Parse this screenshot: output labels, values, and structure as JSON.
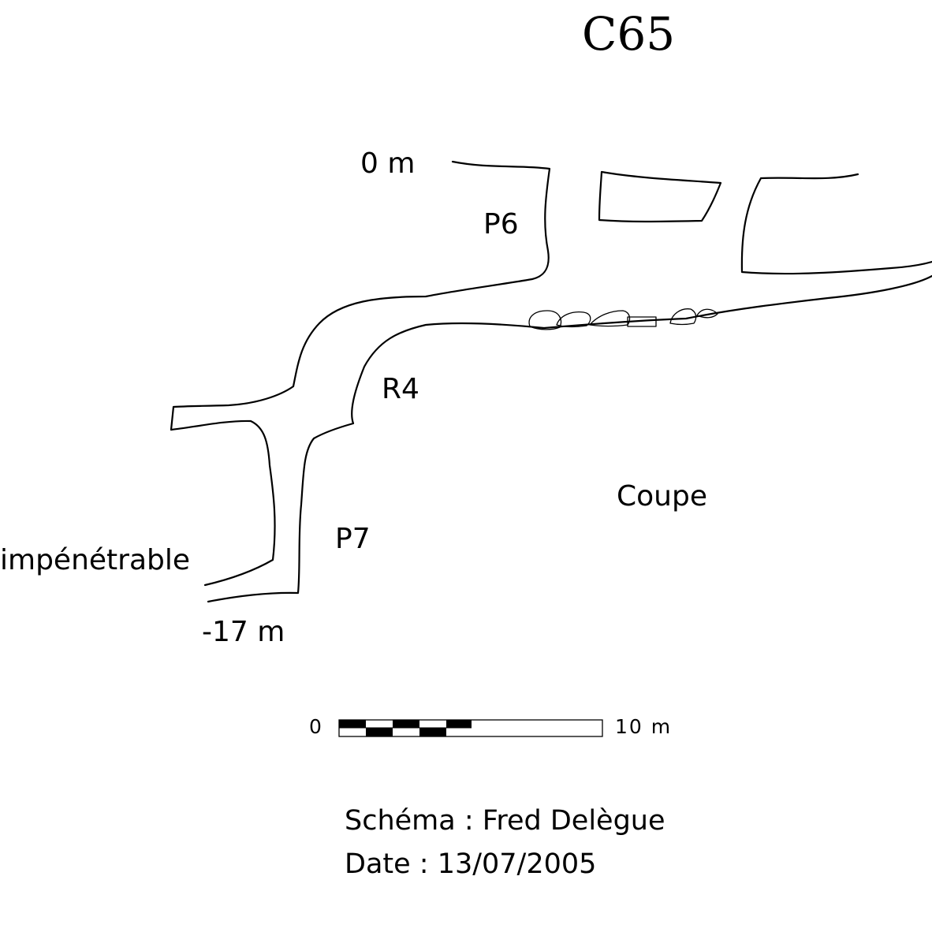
{
  "title": "C65",
  "labels": {
    "depth_top": "0 m",
    "pitch_1": "P6",
    "step": "R4",
    "pitch_2": "P7",
    "blocked": "impénétrable",
    "depth_bottom": "-17 m",
    "view": "Coupe"
  },
  "scale_bar": {
    "start_label": "0",
    "end_label": "10 m"
  },
  "credits": {
    "author_line": "Schéma : Fred Delègue",
    "date_line": "Date : 13/07/2005"
  },
  "colors": {
    "ink": "#000000",
    "background": "#ffffff"
  }
}
